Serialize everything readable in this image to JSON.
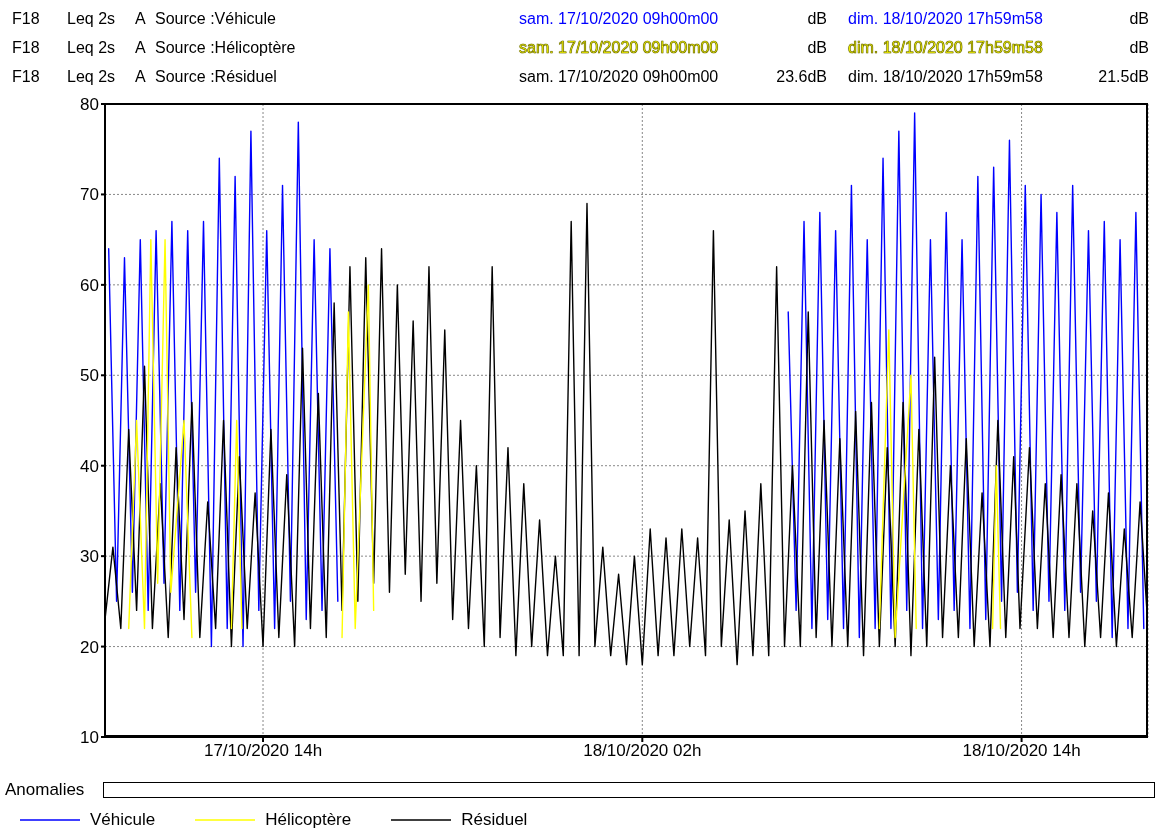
{
  "chart_data": {
    "type": "line",
    "annotations": [
      "F18",
      "Leq 2s",
      "A",
      "Source :Véhicule",
      "sam. 17/10/2020 09h00m00",
      "dB",
      "dim. 18/10/2020 17h59m58",
      "dB",
      "F18",
      "Leq 2s",
      "A",
      "Source :Hélicoptère",
      "sam. 17/10/2020 09h00m00",
      "dB",
      "dim. 18/10/2020 17h59m58",
      "dB",
      "F18",
      "Leq 2s",
      "A",
      "Source :Résiduel",
      "sam. 17/10/2020 09h00m00",
      "23.6dB",
      "dim. 18/10/2020 17h59m58",
      "21.5dB",
      "Anomalies"
    ],
    "xlim": [
      "2020-10-17T09:00",
      "2020-10-18T18:00"
    ],
    "xticks": [
      {
        "value": "2020-10-17T14:00",
        "label": "17/10/2020 14h"
      },
      {
        "value": "2020-10-18T02:00",
        "label": "18/10/2020 02h"
      },
      {
        "value": "2020-10-18T14:00",
        "label": "18/10/2020 14h"
      }
    ],
    "ylim": [
      10,
      80
    ],
    "yticks": [
      10,
      20,
      30,
      40,
      50,
      60,
      70,
      80
    ],
    "grid": true,
    "legend": "bottom",
    "line_style": "solid",
    "series": [
      {
        "name": "Véhicule",
        "color": "#0000ff",
        "x": [
          "2020-10-17T09:07",
          "2020-10-17T09:22",
          "2020-10-17T09:37",
          "2020-10-17T09:52",
          "2020-10-17T10:07",
          "2020-10-17T10:22",
          "2020-10-17T10:37",
          "2020-10-17T10:52",
          "2020-10-17T11:07",
          "2020-10-17T11:22",
          "2020-10-17T11:37",
          "2020-10-17T11:52",
          "2020-10-17T12:07",
          "2020-10-17T12:22",
          "2020-10-17T12:37",
          "2020-10-17T12:52",
          "2020-10-17T13:07",
          "2020-10-17T13:22",
          "2020-10-17T13:37",
          "2020-10-17T13:52",
          "2020-10-17T14:07",
          "2020-10-17T14:22",
          "2020-10-17T14:37",
          "2020-10-17T14:52",
          "2020-10-17T15:07",
          "2020-10-17T15:22",
          "2020-10-17T15:37",
          "2020-10-17T15:52",
          "2020-10-17T16:07",
          "2020-10-17T16:22",
          "2020-10-17T16:37",
          "2020-10-18T06:37",
          "2020-10-18T06:52",
          "2020-10-18T07:07",
          "2020-10-18T07:22",
          "2020-10-18T07:37",
          "2020-10-18T07:52",
          "2020-10-18T08:07",
          "2020-10-18T08:22",
          "2020-10-18T08:37",
          "2020-10-18T08:52",
          "2020-10-18T09:07",
          "2020-10-18T09:22",
          "2020-10-18T09:37",
          "2020-10-18T09:52",
          "2020-10-18T10:07",
          "2020-10-18T10:22",
          "2020-10-18T10:37",
          "2020-10-18T10:52",
          "2020-10-18T11:07",
          "2020-10-18T11:22",
          "2020-10-18T11:37",
          "2020-10-18T11:52",
          "2020-10-18T12:07",
          "2020-10-18T12:22",
          "2020-10-18T12:37",
          "2020-10-18T12:52",
          "2020-10-18T13:07",
          "2020-10-18T13:22",
          "2020-10-18T13:37",
          "2020-10-18T13:52",
          "2020-10-18T14:07",
          "2020-10-18T14:22",
          "2020-10-18T14:37",
          "2020-10-18T14:52",
          "2020-10-18T15:07",
          "2020-10-18T15:22",
          "2020-10-18T15:37",
          "2020-10-18T15:52",
          "2020-10-18T16:07",
          "2020-10-18T16:22",
          "2020-10-18T16:37",
          "2020-10-18T16:52",
          "2020-10-18T17:07",
          "2020-10-18T17:22",
          "2020-10-18T17:37",
          "2020-10-18T17:52"
        ],
        "values": [
          64,
          25,
          63,
          26,
          65,
          24,
          66,
          27,
          67,
          24,
          66,
          26,
          67,
          20,
          74,
          22,
          72,
          20,
          77,
          24,
          66,
          22,
          71,
          25,
          78,
          23,
          65,
          24,
          64,
          25,
          null,
          57,
          24,
          67,
          22,
          68,
          23,
          66,
          22,
          71,
          21,
          65,
          22,
          74,
          22,
          77,
          24,
          79,
          22,
          65,
          23,
          68,
          24,
          65,
          22,
          72,
          23,
          73,
          25,
          76,
          26,
          71,
          24,
          70,
          25,
          68,
          24,
          71,
          26,
          66,
          25,
          67,
          21,
          65,
          22,
          68,
          22
        ]
      },
      {
        "name": "Hélicoptère",
        "color": "#ffff00",
        "x": [
          "2020-10-17T09:45",
          "2020-10-17T10:00",
          "2020-10-17T10:15",
          "2020-10-17T10:27",
          "2020-10-17T10:40",
          "2020-10-17T10:54",
          "2020-10-17T11:05",
          "2020-10-17T11:30",
          "2020-10-17T11:45",
          "2020-10-17T12:00",
          "2020-10-17T13:00",
          "2020-10-17T13:10",
          "2020-10-17T13:20",
          "2020-10-17T13:30",
          "2020-10-17T16:20",
          "2020-10-17T16:30",
          "2020-10-17T16:42",
          "2020-10-17T16:55",
          "2020-10-17T17:20",
          "2020-10-17T17:30",
          "2020-10-17T17:45",
          "2020-10-18T09:30",
          "2020-10-18T09:48",
          "2020-10-18T10:00",
          "2020-10-18T10:30",
          "2020-10-18T10:40",
          "2020-10-18T11:00",
          "2020-10-18T13:05",
          "2020-10-18T13:12",
          "2020-10-18T13:20"
        ],
        "values": [
          22,
          45,
          22,
          65,
          27,
          65,
          26,
          45,
          21,
          null,
          22,
          45,
          22,
          null,
          null,
          21,
          57,
          22,
          60,
          24,
          null,
          22,
          55,
          21,
          50,
          22,
          null,
          22,
          40,
          22
        ]
      },
      {
        "name": "Résiduel",
        "color": "#000000",
        "x": [
          "2020-10-17T09:00",
          "2020-10-17T09:15",
          "2020-10-17T09:30",
          "2020-10-17T09:45",
          "2020-10-17T10:00",
          "2020-10-17T10:15",
          "2020-10-17T10:30",
          "2020-10-17T10:45",
          "2020-10-17T11:00",
          "2020-10-17T11:15",
          "2020-10-17T11:30",
          "2020-10-17T11:45",
          "2020-10-17T12:00",
          "2020-10-17T12:15",
          "2020-10-17T12:30",
          "2020-10-17T12:45",
          "2020-10-17T13:00",
          "2020-10-17T13:15",
          "2020-10-17T13:30",
          "2020-10-17T13:45",
          "2020-10-17T14:00",
          "2020-10-17T14:15",
          "2020-10-17T14:30",
          "2020-10-17T14:45",
          "2020-10-17T15:00",
          "2020-10-17T15:15",
          "2020-10-17T15:30",
          "2020-10-17T15:45",
          "2020-10-17T16:00",
          "2020-10-17T16:15",
          "2020-10-17T16:30",
          "2020-10-17T16:45",
          "2020-10-17T17:00",
          "2020-10-17T17:15",
          "2020-10-17T17:30",
          "2020-10-17T17:45",
          "2020-10-17T18:00",
          "2020-10-17T18:15",
          "2020-10-17T18:30",
          "2020-10-17T18:45",
          "2020-10-17T19:00",
          "2020-10-17T19:15",
          "2020-10-17T19:30",
          "2020-10-17T19:45",
          "2020-10-17T20:00",
          "2020-10-17T20:15",
          "2020-10-17T20:30",
          "2020-10-17T20:45",
          "2020-10-17T21:00",
          "2020-10-17T21:15",
          "2020-10-17T21:30",
          "2020-10-17T21:45",
          "2020-10-17T22:00",
          "2020-10-17T22:15",
          "2020-10-17T22:30",
          "2020-10-17T22:45",
          "2020-10-17T23:00",
          "2020-10-17T23:15",
          "2020-10-17T23:30",
          "2020-10-17T23:45",
          "2020-10-18T00:00",
          "2020-10-18T00:15",
          "2020-10-18T00:30",
          "2020-10-18T00:45",
          "2020-10-18T01:00",
          "2020-10-18T01:15",
          "2020-10-18T01:30",
          "2020-10-18T01:45",
          "2020-10-18T02:00",
          "2020-10-18T02:15",
          "2020-10-18T02:30",
          "2020-10-18T02:45",
          "2020-10-18T03:00",
          "2020-10-18T03:15",
          "2020-10-18T03:30",
          "2020-10-18T03:45",
          "2020-10-18T04:00",
          "2020-10-18T04:15",
          "2020-10-18T04:30",
          "2020-10-18T04:45",
          "2020-10-18T05:00",
          "2020-10-18T05:15",
          "2020-10-18T05:30",
          "2020-10-18T05:45",
          "2020-10-18T06:00",
          "2020-10-18T06:15",
          "2020-10-18T06:30",
          "2020-10-18T06:45",
          "2020-10-18T07:00",
          "2020-10-18T07:15",
          "2020-10-18T07:30",
          "2020-10-18T07:45",
          "2020-10-18T08:00",
          "2020-10-18T08:15",
          "2020-10-18T08:30",
          "2020-10-18T08:45",
          "2020-10-18T09:00",
          "2020-10-18T09:15",
          "2020-10-18T09:30",
          "2020-10-18T09:45",
          "2020-10-18T10:00",
          "2020-10-18T10:15",
          "2020-10-18T10:30",
          "2020-10-18T10:45",
          "2020-10-18T11:00",
          "2020-10-18T11:15",
          "2020-10-18T11:30",
          "2020-10-18T11:45",
          "2020-10-18T12:00",
          "2020-10-18T12:15",
          "2020-10-18T12:30",
          "2020-10-18T12:45",
          "2020-10-18T13:00",
          "2020-10-18T13:15",
          "2020-10-18T13:30",
          "2020-10-18T13:45",
          "2020-10-18T13:57",
          "2020-10-18T14:15",
          "2020-10-18T14:30",
          "2020-10-18T14:45",
          "2020-10-18T15:00",
          "2020-10-18T15:15",
          "2020-10-18T15:30",
          "2020-10-18T15:45",
          "2020-10-18T16:00",
          "2020-10-18T16:15",
          "2020-10-18T16:30",
          "2020-10-18T16:45",
          "2020-10-18T17:00",
          "2020-10-18T17:15",
          "2020-10-18T17:30",
          "2020-10-18T17:45",
          "2020-10-18T18:00"
        ],
        "values": [
          23,
          31,
          22,
          44,
          24,
          51,
          22,
          38,
          21,
          42,
          23,
          47,
          21,
          36,
          22,
          45,
          20,
          41,
          22,
          37,
          20,
          44,
          21,
          39,
          20,
          53,
          22,
          48,
          21,
          58,
          24,
          62,
          25,
          63,
          27,
          64,
          26,
          60,
          28,
          56,
          25,
          62,
          27,
          55,
          23,
          45,
          22,
          40,
          20,
          62,
          21,
          42,
          19,
          38,
          20,
          34,
          19,
          30,
          19,
          67,
          19,
          69,
          20,
          31,
          19,
          28,
          18,
          30,
          18,
          33,
          19,
          32,
          19,
          33,
          20,
          32,
          19,
          66,
          20,
          34,
          18,
          35,
          19,
          38,
          19,
          62,
          20,
          40,
          20,
          57,
          21,
          45,
          20,
          43,
          20,
          46,
          19,
          47,
          20,
          42,
          20,
          47,
          19,
          44,
          20,
          52,
          21,
          40,
          21,
          43,
          20,
          37,
          20,
          45,
          21,
          41,
          22,
          42,
          22,
          38,
          21,
          39,
          21,
          38,
          20,
          35,
          21,
          37,
          20,
          33,
          21,
          36,
          22
        ]
      }
    ]
  }
}
